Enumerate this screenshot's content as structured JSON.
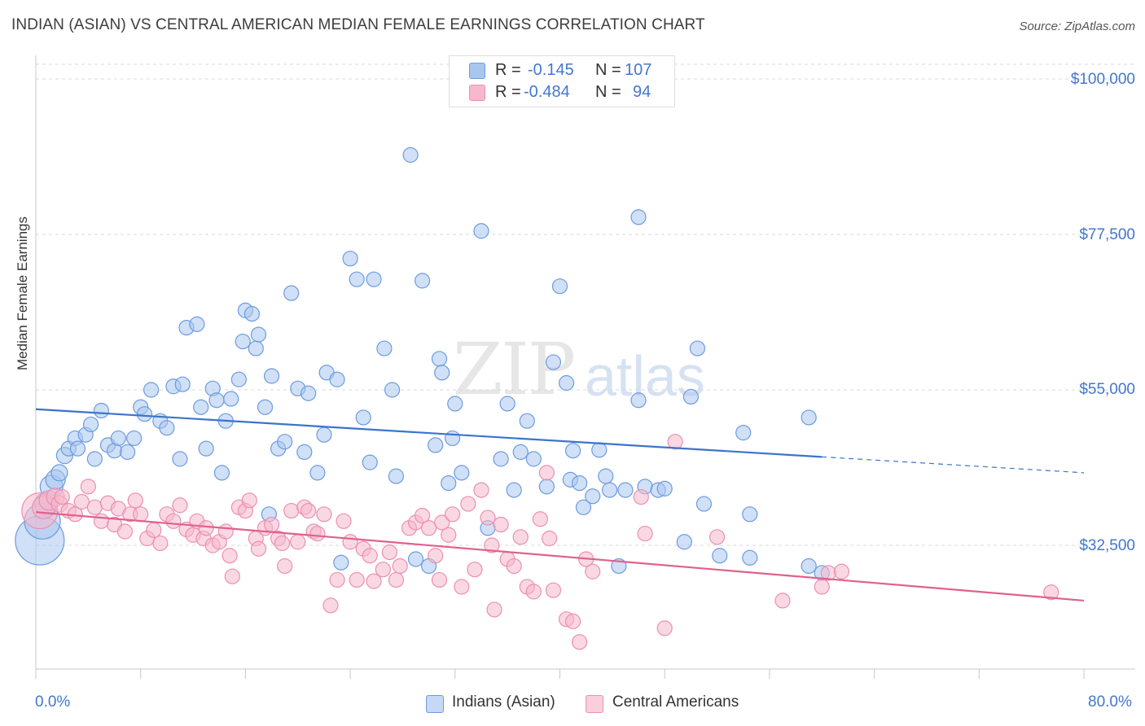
{
  "header": {
    "title": "INDIAN (ASIAN) VS CENTRAL AMERICAN MEDIAN FEMALE EARNINGS CORRELATION CHART",
    "source": "Source: ZipAtlas.com"
  },
  "watermark": {
    "zip": "ZIP",
    "atlas": "atlas"
  },
  "legend": {
    "series1": {
      "r_label": "R =",
      "r_value": "-0.145",
      "n_label": "N =",
      "n_value": "107"
    },
    "series2": {
      "r_label": "R =",
      "r_value": "-0.484",
      "n_label": "N =",
      "n_value": "94"
    }
  },
  "bottom_legend": {
    "series1": "Indians (Asian)",
    "series2": "Central Americans"
  },
  "colors": {
    "blue_fill": "#a9c6ee",
    "blue_stroke": "#6d9be0",
    "blue_line": "#3a74cc",
    "pink_fill": "#f6b8cc",
    "pink_stroke": "#ec8fb0",
    "pink_line": "#e0608e",
    "label_blue": "#4477cc"
  },
  "chart_data": {
    "type": "scatter",
    "title": "INDIAN (ASIAN) VS CENTRAL AMERICAN MEDIAN FEMALE EARNINGS CORRELATION CHART",
    "xlabel": "",
    "ylabel": "Median Female Earnings",
    "xlim": [
      0,
      80
    ],
    "ylim": [
      14000,
      102000
    ],
    "x_tick_labels": [
      "0.0%",
      "80.0%"
    ],
    "y_ticks": [
      32500,
      55000,
      77500,
      100000
    ],
    "y_tick_labels": [
      "$32,500",
      "$55,000",
      "$77,500",
      "$100,000"
    ],
    "grid": true,
    "legend_placement": "top-center",
    "series": [
      {
        "name": "Indians (Asian)",
        "trend": {
          "x": [
            0,
            60
          ],
          "y": [
            52200,
            45300
          ],
          "dashed_to": [
            80,
            43000
          ]
        },
        "points": [
          [
            0.3,
            33200,
            30
          ],
          [
            0.5,
            36000,
            22
          ],
          [
            0.8,
            38500,
            14
          ],
          [
            1.2,
            41000,
            14
          ],
          [
            1.5,
            42000,
            12
          ],
          [
            1.8,
            43000,
            10
          ],
          [
            2.2,
            45500,
            10
          ],
          [
            2.5,
            46500,
            9
          ],
          [
            3.0,
            48000,
            9
          ],
          [
            3.2,
            46500,
            9
          ],
          [
            3.8,
            48500,
            9
          ],
          [
            4.2,
            50000,
            9
          ],
          [
            4.5,
            45000,
            9
          ],
          [
            5.0,
            52000,
            9
          ],
          [
            5.5,
            47000,
            9
          ],
          [
            6.0,
            46200,
            9
          ],
          [
            6.3,
            48000,
            9
          ],
          [
            7.0,
            46000,
            9
          ],
          [
            7.5,
            48000,
            9
          ],
          [
            8.0,
            52500,
            9
          ],
          [
            8.3,
            51500,
            9
          ],
          [
            8.8,
            55000,
            9
          ],
          [
            9.5,
            50500,
            9
          ],
          [
            10.0,
            49500,
            9
          ],
          [
            10.5,
            55500,
            9
          ],
          [
            11.0,
            45000,
            9
          ],
          [
            11.2,
            55800,
            9
          ],
          [
            11.5,
            64000,
            9
          ],
          [
            12.3,
            64500,
            9
          ],
          [
            12.6,
            52500,
            9
          ],
          [
            13.0,
            46500,
            9
          ],
          [
            13.5,
            55200,
            9
          ],
          [
            13.8,
            53500,
            9
          ],
          [
            14.2,
            43000,
            9
          ],
          [
            14.5,
            50500,
            9
          ],
          [
            14.9,
            53700,
            9
          ],
          [
            15.5,
            56500,
            9
          ],
          [
            15.8,
            62000,
            9
          ],
          [
            16.0,
            66500,
            9
          ],
          [
            16.5,
            66000,
            9
          ],
          [
            16.8,
            61000,
            9
          ],
          [
            17.0,
            63000,
            9
          ],
          [
            17.5,
            52500,
            9
          ],
          [
            17.8,
            37000,
            9
          ],
          [
            18.0,
            57000,
            9
          ],
          [
            18.5,
            46500,
            9
          ],
          [
            19.0,
            47500,
            9
          ],
          [
            19.5,
            69000,
            9
          ],
          [
            20.0,
            55200,
            9
          ],
          [
            20.5,
            46000,
            9
          ],
          [
            20.8,
            54500,
            9
          ],
          [
            21.5,
            43000,
            9
          ],
          [
            22.0,
            48500,
            9
          ],
          [
            22.2,
            57500,
            9
          ],
          [
            23.0,
            56500,
            9
          ],
          [
            23.3,
            30000,
            9
          ],
          [
            24.0,
            74000,
            9
          ],
          [
            24.5,
            71000,
            9
          ],
          [
            25.0,
            51000,
            9
          ],
          [
            25.5,
            44500,
            9
          ],
          [
            25.8,
            71000,
            9
          ],
          [
            26.6,
            61000,
            9
          ],
          [
            27.2,
            55000,
            9
          ],
          [
            27.5,
            42500,
            9
          ],
          [
            28.6,
            89000,
            9
          ],
          [
            29.0,
            30500,
            9
          ],
          [
            29.5,
            70800,
            9
          ],
          [
            30.0,
            29500,
            9
          ],
          [
            30.5,
            47000,
            9
          ],
          [
            30.8,
            59500,
            9
          ],
          [
            31.0,
            57500,
            9
          ],
          [
            31.5,
            41500,
            9
          ],
          [
            31.8,
            48000,
            9
          ],
          [
            32.0,
            53000,
            9
          ],
          [
            32.5,
            43000,
            9
          ],
          [
            34.0,
            78000,
            9
          ],
          [
            34.5,
            35000,
            9
          ],
          [
            35.5,
            45000,
            9
          ],
          [
            36.0,
            53000,
            9
          ],
          [
            36.5,
            40500,
            9
          ],
          [
            37.0,
            46000,
            9
          ],
          [
            37.5,
            50500,
            9
          ],
          [
            38.0,
            45000,
            9
          ],
          [
            39.0,
            41000,
            9
          ],
          [
            39.5,
            59000,
            9
          ],
          [
            40.0,
            70000,
            9
          ],
          [
            40.5,
            56000,
            9
          ],
          [
            40.8,
            42000,
            9
          ],
          [
            41.0,
            46200,
            9
          ],
          [
            41.5,
            41500,
            9
          ],
          [
            41.8,
            38000,
            9
          ],
          [
            42.5,
            39600,
            9
          ],
          [
            43.0,
            46300,
            9
          ],
          [
            43.5,
            42500,
            9
          ],
          [
            43.8,
            40500,
            9
          ],
          [
            44.5,
            29500,
            9
          ],
          [
            45.0,
            40500,
            9
          ],
          [
            46.0,
            53500,
            9
          ],
          [
            46.0,
            80000,
            9
          ],
          [
            46.5,
            41000,
            9
          ],
          [
            47.5,
            40500,
            9
          ],
          [
            48.0,
            40700,
            9
          ],
          [
            49.5,
            33000,
            9
          ],
          [
            50.0,
            54000,
            9
          ],
          [
            50.5,
            61000,
            9
          ],
          [
            51.0,
            38500,
            9
          ],
          [
            52.2,
            31000,
            9
          ],
          [
            54.0,
            48800,
            9
          ],
          [
            54.5,
            37000,
            9
          ],
          [
            54.5,
            30700,
            9
          ],
          [
            59.0,
            51000,
            9
          ],
          [
            59.0,
            29500,
            9
          ],
          [
            60.0,
            28500,
            9
          ]
        ]
      },
      {
        "name": "Central Americans",
        "trend": {
          "x": [
            0,
            80
          ],
          "y": [
            37300,
            24500
          ]
        },
        "points": [
          [
            0.3,
            37500,
            22
          ],
          [
            0.6,
            38000,
            14
          ],
          [
            1.0,
            39000,
            12
          ],
          [
            1.5,
            39500,
            11
          ],
          [
            1.8,
            38500,
            10
          ],
          [
            2.0,
            39500,
            9
          ],
          [
            2.5,
            37500,
            9
          ],
          [
            3.0,
            37000,
            9
          ],
          [
            3.5,
            38800,
            9
          ],
          [
            4.0,
            41000,
            9
          ],
          [
            4.5,
            38000,
            9
          ],
          [
            5.0,
            36000,
            9
          ],
          [
            5.5,
            38600,
            9
          ],
          [
            6.0,
            35500,
            9
          ],
          [
            6.3,
            37800,
            9
          ],
          [
            6.8,
            34500,
            9
          ],
          [
            7.2,
            37000,
            9
          ],
          [
            7.6,
            39000,
            9
          ],
          [
            8.0,
            37000,
            9
          ],
          [
            8.5,
            33500,
            9
          ],
          [
            9.0,
            34700,
            9
          ],
          [
            9.5,
            32800,
            9
          ],
          [
            10.0,
            37000,
            9
          ],
          [
            10.5,
            36000,
            9
          ],
          [
            11.0,
            38300,
            9
          ],
          [
            11.5,
            34800,
            9
          ],
          [
            12.0,
            34000,
            9
          ],
          [
            12.3,
            36000,
            9
          ],
          [
            12.8,
            33500,
            9
          ],
          [
            13.0,
            35000,
            9
          ],
          [
            13.5,
            32500,
            9
          ],
          [
            14.0,
            33000,
            9
          ],
          [
            14.5,
            34500,
            9
          ],
          [
            14.8,
            31000,
            9
          ],
          [
            15.0,
            28000,
            9
          ],
          [
            15.5,
            38000,
            9
          ],
          [
            16.0,
            37500,
            9
          ],
          [
            16.3,
            39000,
            9
          ],
          [
            16.8,
            33500,
            9
          ],
          [
            17.0,
            32000,
            9
          ],
          [
            17.5,
            35000,
            9
          ],
          [
            18.0,
            35500,
            9
          ],
          [
            18.5,
            33500,
            9
          ],
          [
            18.8,
            32800,
            9
          ],
          [
            19.0,
            29500,
            9
          ],
          [
            19.5,
            37500,
            9
          ],
          [
            20.0,
            33000,
            9
          ],
          [
            20.5,
            38000,
            9
          ],
          [
            20.8,
            37500,
            9
          ],
          [
            21.2,
            34500,
            9
          ],
          [
            21.5,
            34200,
            9
          ],
          [
            22.0,
            37000,
            9
          ],
          [
            22.5,
            23800,
            9
          ],
          [
            23.0,
            27500,
            9
          ],
          [
            23.5,
            36000,
            9
          ],
          [
            24.0,
            33000,
            9
          ],
          [
            24.5,
            27500,
            9
          ],
          [
            25.0,
            32000,
            9
          ],
          [
            25.5,
            31000,
            9
          ],
          [
            25.8,
            27300,
            9
          ],
          [
            26.5,
            29000,
            9
          ],
          [
            27.0,
            31500,
            9
          ],
          [
            27.5,
            27500,
            9
          ],
          [
            27.8,
            29500,
            9
          ],
          [
            28.5,
            35000,
            9
          ],
          [
            29.0,
            35800,
            9
          ],
          [
            29.5,
            36800,
            9
          ],
          [
            30.0,
            35000,
            9
          ],
          [
            30.5,
            31000,
            9
          ],
          [
            30.8,
            27500,
            9
          ],
          [
            31.0,
            35800,
            9
          ],
          [
            31.5,
            34000,
            9
          ],
          [
            31.8,
            37000,
            9
          ],
          [
            32.5,
            26500,
            9
          ],
          [
            33.0,
            38500,
            9
          ],
          [
            33.5,
            29000,
            9
          ],
          [
            34.0,
            40500,
            9
          ],
          [
            34.5,
            36500,
            9
          ],
          [
            34.8,
            32500,
            9
          ],
          [
            35.0,
            23200,
            9
          ],
          [
            35.5,
            35500,
            9
          ],
          [
            36.0,
            30500,
            9
          ],
          [
            36.5,
            29500,
            9
          ],
          [
            37.0,
            33700,
            9
          ],
          [
            37.5,
            26500,
            9
          ],
          [
            38.0,
            25800,
            9
          ],
          [
            38.5,
            36300,
            9
          ],
          [
            39.0,
            43000,
            9
          ],
          [
            39.2,
            33500,
            9
          ],
          [
            39.5,
            26000,
            9
          ],
          [
            40.5,
            21800,
            9
          ],
          [
            41.0,
            21500,
            9
          ],
          [
            41.5,
            18500,
            9
          ],
          [
            42.0,
            30500,
            9
          ],
          [
            42.5,
            28700,
            9
          ],
          [
            46.5,
            34200,
            9
          ],
          [
            46.2,
            39500,
            9
          ],
          [
            48.0,
            20500,
            9
          ],
          [
            48.8,
            47500,
            9
          ],
          [
            52.0,
            33700,
            9
          ],
          [
            57.0,
            24500,
            9
          ],
          [
            60.0,
            26500,
            9
          ],
          [
            60.5,
            28500,
            9
          ],
          [
            61.5,
            28700,
            9
          ],
          [
            77.5,
            25700,
            9
          ]
        ]
      }
    ]
  }
}
